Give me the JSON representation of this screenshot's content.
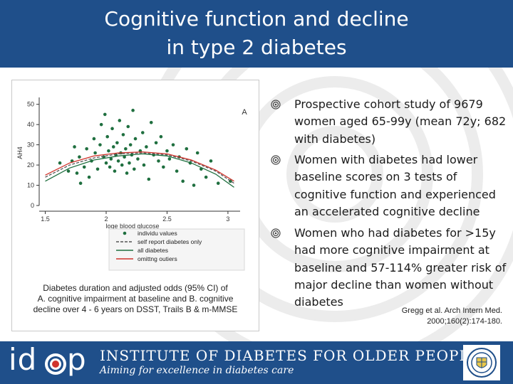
{
  "slide": {
    "title_lines": [
      "Cognitive function and decline",
      "in type 2 diabetes"
    ],
    "colors": {
      "title_bg": "#1f4f8a",
      "footer_bg": "#1f4f8a",
      "accent_red": "#d0342c"
    }
  },
  "figure": {
    "panel_label": "A",
    "caption_lines": [
      "Diabetes duration and adjusted odds (95% CI) of",
      "A. cognitive impairment at baseline and B. cognitive",
      "decline over 4 - 6 years on DSST, Trails B & m-MMSE"
    ]
  },
  "chart_data": {
    "type": "scatter",
    "title": "",
    "xlabel": "loge blood glucose",
    "ylabel": "AH4",
    "xlim": [
      1.45,
      3.1
    ],
    "ylim": [
      0,
      52
    ],
    "x_ticks": [
      "1.5",
      "2",
      "2.5",
      "3"
    ],
    "y_ticks": [
      "0",
      "10",
      "20",
      "30",
      "40",
      "50"
    ],
    "grid": false,
    "legend_position": "bottom",
    "legend": [
      "individu values",
      "self report diabetes only",
      "all diabetes",
      "omittng outiers"
    ],
    "points": [
      {
        "x": 1.62,
        "y": 21
      },
      {
        "x": 1.69,
        "y": 17
      },
      {
        "x": 1.72,
        "y": 22
      },
      {
        "x": 1.74,
        "y": 29
      },
      {
        "x": 1.76,
        "y": 16
      },
      {
        "x": 1.78,
        "y": 24
      },
      {
        "x": 1.79,
        "y": 11
      },
      {
        "x": 1.82,
        "y": 19
      },
      {
        "x": 1.84,
        "y": 28
      },
      {
        "x": 1.86,
        "y": 14
      },
      {
        "x": 1.88,
        "y": 22
      },
      {
        "x": 1.9,
        "y": 33
      },
      {
        "x": 1.91,
        "y": 26
      },
      {
        "x": 1.93,
        "y": 18
      },
      {
        "x": 1.95,
        "y": 30
      },
      {
        "x": 1.96,
        "y": 40
      },
      {
        "x": 1.98,
        "y": 24
      },
      {
        "x": 1.99,
        "y": 45
      },
      {
        "x": 2.0,
        "y": 21
      },
      {
        "x": 2.01,
        "y": 34
      },
      {
        "x": 2.02,
        "y": 27
      },
      {
        "x": 2.03,
        "y": 19
      },
      {
        "x": 2.04,
        "y": 23
      },
      {
        "x": 2.05,
        "y": 38
      },
      {
        "x": 2.06,
        "y": 29
      },
      {
        "x": 2.07,
        "y": 17
      },
      {
        "x": 2.08,
        "y": 25
      },
      {
        "x": 2.09,
        "y": 31
      },
      {
        "x": 2.1,
        "y": 22
      },
      {
        "x": 2.11,
        "y": 42
      },
      {
        "x": 2.12,
        "y": 26
      },
      {
        "x": 2.13,
        "y": 20
      },
      {
        "x": 2.14,
        "y": 35
      },
      {
        "x": 2.15,
        "y": 24
      },
      {
        "x": 2.16,
        "y": 28
      },
      {
        "x": 2.17,
        "y": 16
      },
      {
        "x": 2.18,
        "y": 39
      },
      {
        "x": 2.19,
        "y": 21
      },
      {
        "x": 2.2,
        "y": 30
      },
      {
        "x": 2.21,
        "y": 25
      },
      {
        "x": 2.22,
        "y": 47
      },
      {
        "x": 2.23,
        "y": 18
      },
      {
        "x": 2.24,
        "y": 33
      },
      {
        "x": 2.26,
        "y": 23
      },
      {
        "x": 2.28,
        "y": 27
      },
      {
        "x": 2.3,
        "y": 36
      },
      {
        "x": 2.31,
        "y": 20
      },
      {
        "x": 2.33,
        "y": 29
      },
      {
        "x": 2.35,
        "y": 13
      },
      {
        "x": 2.37,
        "y": 41
      },
      {
        "x": 2.39,
        "y": 25
      },
      {
        "x": 2.41,
        "y": 31
      },
      {
        "x": 2.43,
        "y": 22
      },
      {
        "x": 2.45,
        "y": 34
      },
      {
        "x": 2.47,
        "y": 19
      },
      {
        "x": 2.5,
        "y": 27
      },
      {
        "x": 2.52,
        "y": 23
      },
      {
        "x": 2.55,
        "y": 30
      },
      {
        "x": 2.58,
        "y": 17
      },
      {
        "x": 2.6,
        "y": 24
      },
      {
        "x": 2.63,
        "y": 12
      },
      {
        "x": 2.66,
        "y": 28
      },
      {
        "x": 2.69,
        "y": 21
      },
      {
        "x": 2.72,
        "y": 10
      },
      {
        "x": 2.75,
        "y": 26
      },
      {
        "x": 2.78,
        "y": 18
      },
      {
        "x": 2.82,
        "y": 14
      },
      {
        "x": 2.86,
        "y": 22
      },
      {
        "x": 2.92,
        "y": 11
      },
      {
        "x": 3.02,
        "y": 12
      }
    ],
    "series": [
      {
        "name": "self report diabetes only",
        "color": "#555555",
        "x": [
          1.5,
          1.7,
          1.9,
          2.1,
          2.3,
          2.5,
          2.7,
          2.9,
          3.05
        ],
        "y": [
          14,
          20,
          23.5,
          25.5,
          26,
          25,
          22,
          17,
          11
        ]
      },
      {
        "name": "all diabetes",
        "color": "#1f6f3f",
        "x": [
          1.5,
          1.7,
          1.9,
          2.1,
          2.3,
          2.5,
          2.7,
          2.9,
          3.05
        ],
        "y": [
          12,
          18.5,
          22.5,
          24.5,
          25.5,
          24.5,
          21,
          15.5,
          9
        ]
      },
      {
        "name": "omittng outiers",
        "color": "#d0342c",
        "x": [
          1.5,
          1.7,
          1.9,
          2.1,
          2.3,
          2.5,
          2.7,
          2.9,
          3.05
        ],
        "y": [
          15,
          21,
          24.5,
          26,
          26.5,
          25.5,
          22.5,
          17.5,
          12
        ]
      }
    ]
  },
  "bullets": [
    {
      "lines": [
        "Prospective cohort study of 9679",
        "women aged 65-99y (mean 72y; 682",
        "with diabetes)"
      ]
    },
    {
      "lines": [
        "Women with diabetes had lower",
        "baseline scores on 3 tests of",
        "cognitive function and experienced",
        "an  accelerated cognitive decline"
      ]
    },
    {
      "lines": [
        "Women who had diabetes for >15y",
        "had more cognitive impairment at",
        "baseline and 57-114% greater risk of",
        "major decline than women without",
        "diabetes"
      ]
    }
  ],
  "citation": {
    "lines": [
      "Gregg et al. Arch Intern Med.",
      "2000;160(2):174-180."
    ]
  },
  "footer": {
    "logo_left": "id",
    "logo_right": "p",
    "org_name": "INSTITUTE OF DIABETES FOR OLDER PEOPLE",
    "tagline": "Aiming for excellence in diabetes care"
  }
}
